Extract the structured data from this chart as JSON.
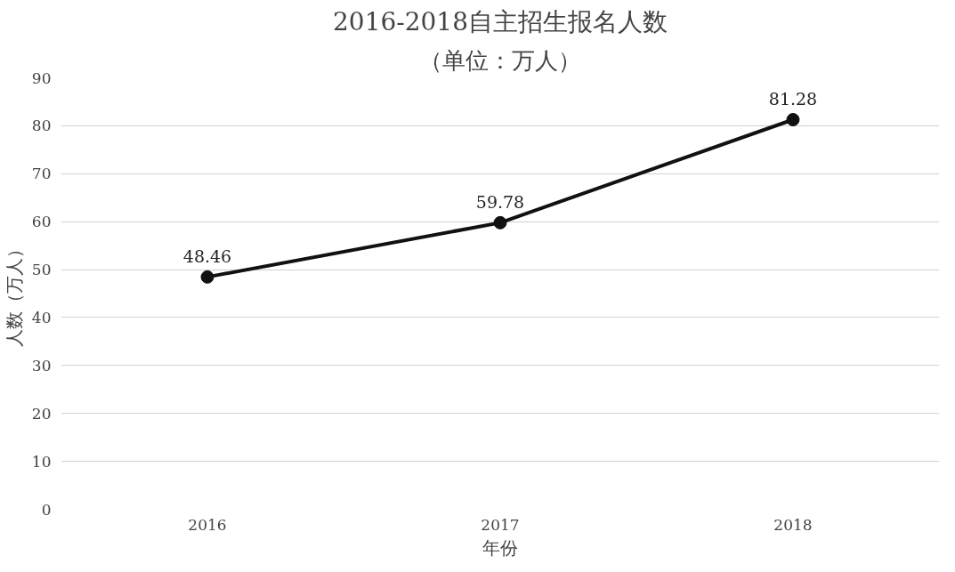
{
  "chart_data": {
    "type": "line",
    "title": "2016-2018自主招生报名人数",
    "subtitle": "（单位：万人）",
    "xlabel": "年份",
    "ylabel": "人数（万人）",
    "categories": [
      "2016",
      "2017",
      "2018"
    ],
    "series": [
      {
        "color": "#111111",
        "values": [
          48.46,
          59.78,
          81.28
        ]
      }
    ],
    "ylim": [
      0,
      90
    ],
    "yticks": [
      0,
      10,
      20,
      30,
      40,
      50,
      60,
      70,
      80,
      90
    ],
    "grid": "y",
    "marker": "circle",
    "line_style": "solid",
    "data_labels": true
  }
}
